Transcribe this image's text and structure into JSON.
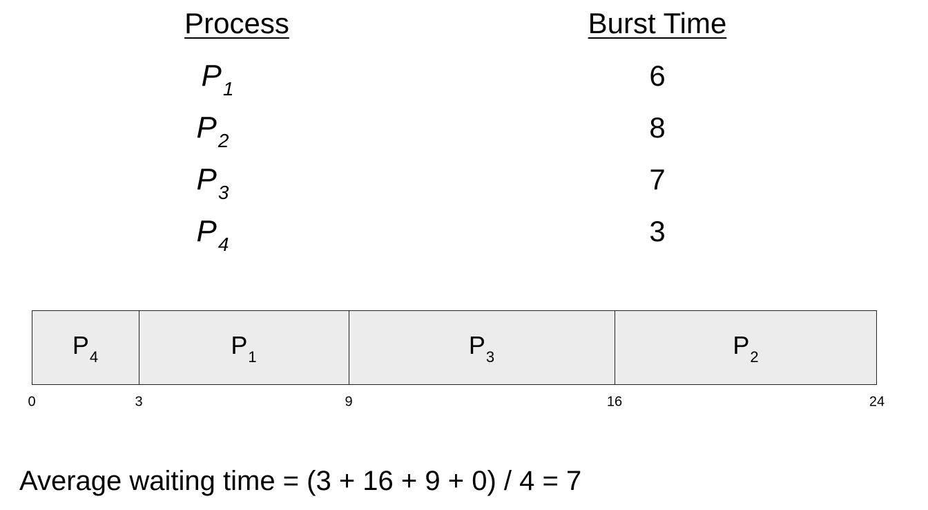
{
  "table": {
    "headers": [
      "Process",
      "Burst Time"
    ],
    "rows": [
      [
        {
          "name": "P",
          "sub": "1"
        },
        6
      ],
      [
        {
          "name": "P",
          "sub": "2"
        },
        8
      ],
      [
        {
          "name": "P",
          "sub": "3"
        },
        7
      ],
      [
        {
          "name": "P",
          "sub": "4"
        },
        3
      ]
    ]
  },
  "gantt": {
    "segments": [
      {
        "name": "P",
        "sub": "4"
      },
      {
        "name": "P",
        "sub": "1"
      },
      {
        "name": "P",
        "sub": "3"
      },
      {
        "name": "P",
        "sub": "2"
      }
    ],
    "times": [
      0,
      3,
      9,
      16,
      24
    ]
  },
  "footer": "Average waiting time = (3 + 16 + 9 + 0) / 4 = 7"
}
